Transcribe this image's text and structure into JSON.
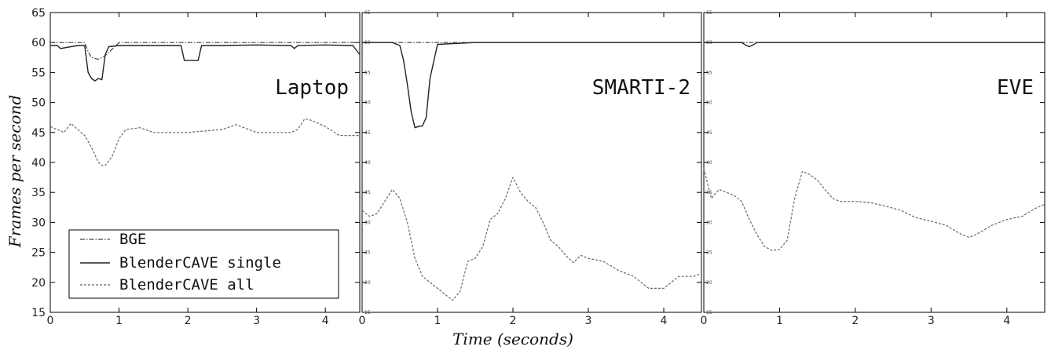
{
  "figure": {
    "ylabel": "Frames per second",
    "xlabel": "Time (seconds)"
  },
  "legend": {
    "entries": [
      {
        "label": "BGE",
        "style": "dashdot"
      },
      {
        "label": "BlenderCAVE single",
        "style": "solid"
      },
      {
        "label": "BlenderCAVE all",
        "style": "dashed"
      }
    ]
  },
  "chart_data": [
    {
      "type": "line",
      "title": "Laptop",
      "xlim": [
        0,
        4.5
      ],
      "ylim": [
        15,
        65
      ],
      "xticks": [
        "0",
        "1",
        "2",
        "3",
        "4"
      ],
      "yticks": [
        "15",
        "20",
        "25",
        "30",
        "35",
        "40",
        "45",
        "50",
        "55",
        "60",
        "65"
      ],
      "series": [
        {
          "name": "BGE",
          "style": "dashdot",
          "x": [
            0,
            0.4,
            0.5,
            0.55,
            0.6,
            0.7,
            0.8,
            1.0,
            2.0,
            3.0,
            4.0,
            4.5
          ],
          "y": [
            60,
            60,
            60,
            58.5,
            57.5,
            57.2,
            57.8,
            60,
            60,
            60,
            60,
            60
          ]
        },
        {
          "name": "BlenderCAVE single",
          "style": "solid",
          "x": [
            0,
            0.1,
            0.15,
            0.4,
            0.5,
            0.55,
            0.6,
            0.65,
            0.7,
            0.75,
            0.8,
            0.85,
            1.0,
            1.2,
            1.9,
            1.95,
            2.15,
            2.2,
            2.5,
            3.0,
            3.5,
            3.55,
            3.6,
            4.0,
            4.4,
            4.5
          ],
          "y": [
            59.5,
            59.5,
            59,
            59.5,
            59.5,
            55,
            54,
            53.6,
            54,
            53.8,
            58,
            59.3,
            59.5,
            59.5,
            59.5,
            57,
            57,
            59.5,
            59.5,
            59.6,
            59.5,
            59,
            59.5,
            59.6,
            59.5,
            58
          ]
        },
        {
          "name": "BlenderCAVE all",
          "style": "dashed",
          "x": [
            0,
            0.2,
            0.3,
            0.4,
            0.5,
            0.6,
            0.7,
            0.75,
            0.8,
            0.9,
            1.0,
            1.1,
            1.3,
            1.5,
            2.0,
            2.5,
            2.7,
            3.0,
            3.5,
            3.6,
            3.7,
            3.8,
            4.0,
            4.2,
            4.5
          ],
          "y": [
            46,
            45,
            46.5,
            45.5,
            44.5,
            42.5,
            40,
            39.5,
            39.5,
            41,
            44,
            45.5,
            45.8,
            45,
            45,
            45.5,
            46.3,
            45,
            45,
            45.5,
            47.3,
            47,
            46,
            44.5,
            44.5
          ]
        }
      ]
    },
    {
      "type": "line",
      "title": "SMARTI-2",
      "xlim": [
        0,
        4.5
      ],
      "ylim": [
        15,
        65
      ],
      "xticks": [
        "0",
        "1",
        "2",
        "3",
        "4"
      ],
      "yticks": [
        "15",
        "20",
        "25",
        "30",
        "35",
        "40",
        "45",
        "50",
        "55",
        "60",
        "65"
      ],
      "series": [
        {
          "name": "BGE",
          "style": "dashdot",
          "x": [
            0,
            0.4,
            0.9,
            1.2,
            2.0,
            3.0,
            4.5
          ],
          "y": [
            60,
            60,
            60,
            60,
            60,
            60,
            60
          ]
        },
        {
          "name": "BlenderCAVE single",
          "style": "solid",
          "x": [
            0,
            0.4,
            0.5,
            0.55,
            0.6,
            0.65,
            0.7,
            0.75,
            0.8,
            0.85,
            0.9,
            1.0,
            1.5,
            2.0,
            3.0,
            4.0,
            4.5
          ],
          "y": [
            60,
            60,
            59.5,
            57,
            53,
            48.5,
            45.8,
            46,
            46.1,
            47.5,
            54,
            59.7,
            60,
            60,
            60,
            60,
            60
          ]
        },
        {
          "name": "BlenderCAVE all",
          "style": "dashed",
          "x": [
            0,
            0.1,
            0.2,
            0.3,
            0.4,
            0.5,
            0.6,
            0.7,
            0.8,
            0.9,
            1.0,
            1.1,
            1.2,
            1.3,
            1.4,
            1.5,
            1.6,
            1.7,
            1.8,
            1.9,
            2.0,
            2.1,
            2.2,
            2.3,
            2.4,
            2.5,
            2.6,
            2.7,
            2.8,
            2.9,
            3.0,
            3.2,
            3.4,
            3.6,
            3.8,
            4.0,
            4.2,
            4.4,
            4.5
          ],
          "y": [
            32,
            31,
            31.5,
            33.5,
            35.5,
            34,
            30,
            24,
            21,
            20,
            19,
            18,
            17,
            18.5,
            23.5,
            24,
            26,
            30.5,
            31.5,
            34,
            37.5,
            35,
            33.5,
            32.5,
            30,
            27,
            26,
            24.5,
            23.3,
            24.5,
            24,
            23.5,
            22,
            21,
            19,
            19,
            21,
            21,
            21.5
          ]
        }
      ]
    },
    {
      "type": "line",
      "title": "EVE",
      "xlim": [
        0,
        4.5
      ],
      "ylim": [
        15,
        65
      ],
      "xticks": [
        "0",
        "1",
        "2",
        "3",
        "4"
      ],
      "yticks": [
        "15",
        "20",
        "25",
        "30",
        "35",
        "40",
        "45",
        "50",
        "55",
        "60",
        "65"
      ],
      "series": [
        {
          "name": "BGE",
          "style": "dashdot",
          "x": [
            0,
            1.0,
            2.0,
            3.0,
            4.0,
            4.5
          ],
          "y": [
            60,
            60,
            60,
            60,
            60,
            60
          ]
        },
        {
          "name": "BlenderCAVE single",
          "style": "solid",
          "x": [
            0,
            0.5,
            0.55,
            0.6,
            0.65,
            0.7,
            1.0,
            2.0,
            3.0,
            4.5
          ],
          "y": [
            60,
            60,
            59.6,
            59.3,
            59.6,
            60,
            60,
            60,
            60,
            60
          ]
        },
        {
          "name": "BlenderCAVE all",
          "style": "dashed",
          "x": [
            0,
            0.05,
            0.1,
            0.2,
            0.3,
            0.4,
            0.5,
            0.6,
            0.7,
            0.8,
            0.9,
            1.0,
            1.1,
            1.2,
            1.3,
            1.4,
            1.5,
            1.6,
            1.7,
            1.8,
            1.9,
            2.0,
            2.2,
            2.4,
            2.6,
            2.8,
            3.0,
            3.2,
            3.4,
            3.5,
            3.6,
            3.8,
            4.0,
            4.2,
            4.4,
            4.5
          ],
          "y": [
            39,
            36.5,
            34,
            35.5,
            35,
            34.5,
            33.5,
            30.5,
            28,
            26,
            25.3,
            25.5,
            27,
            34,
            38.5,
            38,
            37,
            35.5,
            34,
            33.5,
            33.5,
            33.5,
            33.3,
            32.7,
            32,
            30.8,
            30.2,
            29.5,
            28,
            27.5,
            28,
            29.5,
            30.5,
            31,
            32.5,
            33
          ]
        }
      ]
    }
  ]
}
